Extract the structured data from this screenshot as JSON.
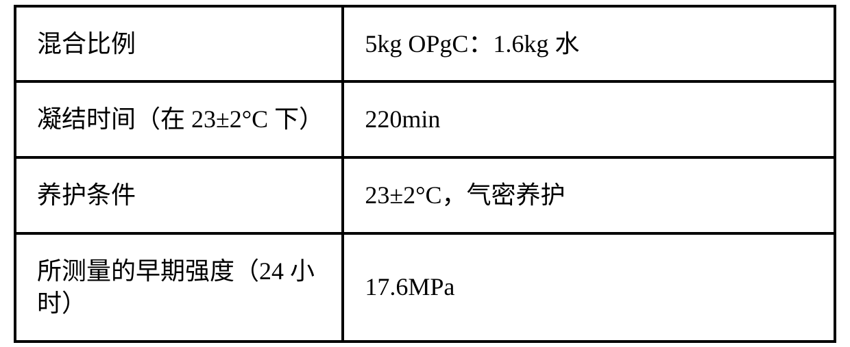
{
  "table": {
    "rows": [
      {
        "label": "混合比例",
        "value": "5kg OPgC：1.6kg 水"
      },
      {
        "label": "凝结时间（在 23±2°C 下）",
        "value": "220min"
      },
      {
        "label": "养护条件",
        "value": "23±2°C，气密养护"
      },
      {
        "label": "所测量的早期强度（24 小时）",
        "value": "17.6MPa"
      }
    ],
    "border_color": "#000000",
    "text_color": "#000000",
    "background_color": "#ffffff",
    "font_size": 36,
    "border_width": 4,
    "col_widths": [
      "40%",
      "60%"
    ]
  }
}
